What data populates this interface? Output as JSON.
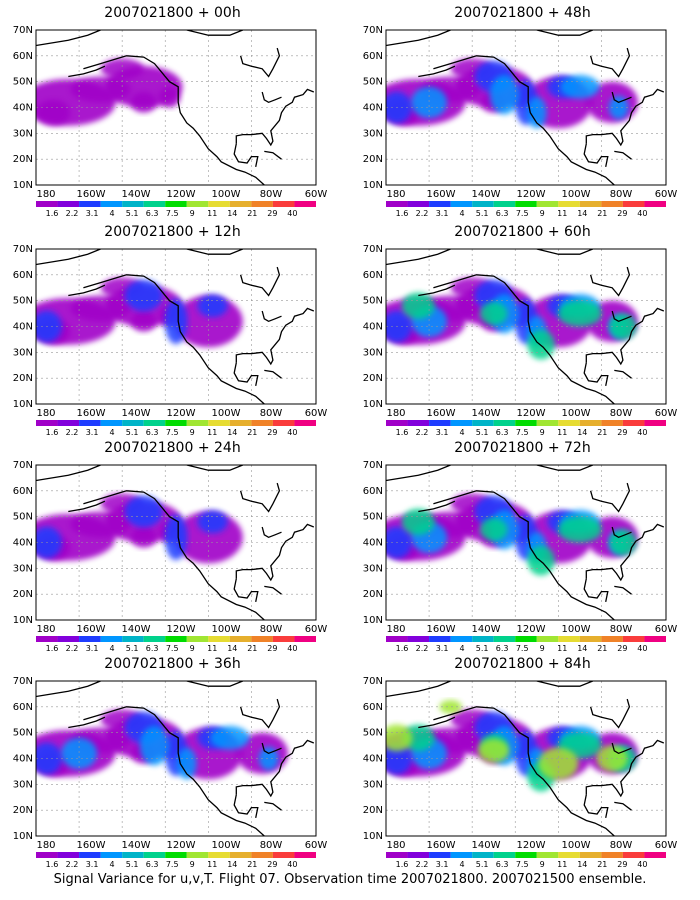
{
  "panels": [
    {
      "title": "2007021800 + 00h",
      "intensity": 1
    },
    {
      "title": "2007021800 + 48h",
      "intensity": 3
    },
    {
      "title": "2007021800 + 12h",
      "intensity": 2
    },
    {
      "title": "2007021800 + 60h",
      "intensity": 4
    },
    {
      "title": "2007021800 + 24h",
      "intensity": 2
    },
    {
      "title": "2007021800 + 72h",
      "intensity": 4
    },
    {
      "title": "2007021800 + 36h",
      "intensity": 3
    },
    {
      "title": "2007021800 + 84h",
      "intensity": 5
    }
  ],
  "lat_labels": [
    "70N",
    "60N",
    "50N",
    "40N",
    "30N",
    "20N",
    "10N"
  ],
  "lon_labels": [
    "180",
    "160W",
    "140W",
    "120W",
    "100W",
    "80W",
    "60W"
  ],
  "colorbar": {
    "labels": [
      "1.6",
      "2.2",
      "3.1",
      "4",
      "5.1",
      "6.3",
      "7.5",
      "9",
      "11",
      "14",
      "21",
      "29",
      "40"
    ],
    "colors": [
      "#a000c8",
      "#8200dc",
      "#1e3cff",
      "#0096ff",
      "#00b4c8",
      "#00d28c",
      "#00dc00",
      "#a0e632",
      "#e6dc32",
      "#e6af2d",
      "#f08228",
      "#fa3c3c",
      "#f00082"
    ]
  },
  "caption": "Signal Variance for u,v,T. Flight 07. Observation time 2007021800. 2007021500 ensemble."
}
